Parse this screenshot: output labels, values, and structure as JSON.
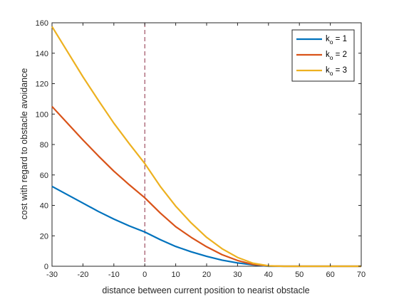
{
  "chart_data": {
    "type": "line",
    "xlabel": "distance between current position to nearist obstacle",
    "ylabel": "cost with regard to obstacle avoidance",
    "xlim": [
      -30,
      70
    ],
    "ylim": [
      0,
      160
    ],
    "xticks": [
      -30,
      -20,
      -10,
      0,
      10,
      20,
      30,
      40,
      50,
      60,
      70
    ],
    "yticks": [
      0,
      20,
      40,
      60,
      80,
      100,
      120,
      140,
      160
    ],
    "xtick_labels": [
      "-30",
      "-20",
      "-10",
      "0",
      "10",
      "20",
      "30",
      "40",
      "50",
      "60",
      "70"
    ],
    "ytick_labels": [
      "0",
      "20",
      "40",
      "60",
      "80",
      "100",
      "120",
      "140",
      "160"
    ],
    "grid": false,
    "legend_position": "top-right",
    "reference_line": {
      "x": 0,
      "style": "dashed",
      "color": "#8b2c44"
    },
    "x": [
      -30,
      -25,
      -20,
      -15,
      -10,
      -5,
      0,
      5,
      10,
      15,
      20,
      25,
      30,
      35,
      40,
      45,
      50,
      55,
      60,
      65,
      70
    ],
    "series": [
      {
        "name": "k_o = 1",
        "legend_main": "k",
        "legend_sub": "o",
        "legend_rest": " = 1",
        "color": "#0072bd",
        "values": [
          52.5,
          47,
          41.5,
          36,
          31,
          26.5,
          22.5,
          17.5,
          13,
          9.5,
          6.5,
          4,
          2.2,
          0.9,
          0,
          0,
          0,
          0,
          0,
          0,
          0
        ]
      },
      {
        "name": "k_o = 2",
        "legend_main": "k",
        "legend_sub": "o",
        "legend_rest": " = 2",
        "color": "#d95319",
        "values": [
          105,
          94,
          83,
          72.5,
          62.5,
          53.5,
          45,
          35,
          26,
          19,
          12.8,
          7.6,
          3.8,
          1.2,
          0.2,
          0,
          0,
          0,
          0,
          0,
          0
        ]
      },
      {
        "name": "k_o = 3",
        "legend_main": "k",
        "legend_sub": "o",
        "legend_rest": " = 3",
        "color": "#edb120",
        "values": [
          157.5,
          141,
          124.5,
          109,
          94,
          80.5,
          67.5,
          52.5,
          39.5,
          28.5,
          19,
          11.5,
          5.8,
          2,
          0.3,
          0,
          0,
          0,
          0,
          0,
          0
        ]
      }
    ]
  }
}
